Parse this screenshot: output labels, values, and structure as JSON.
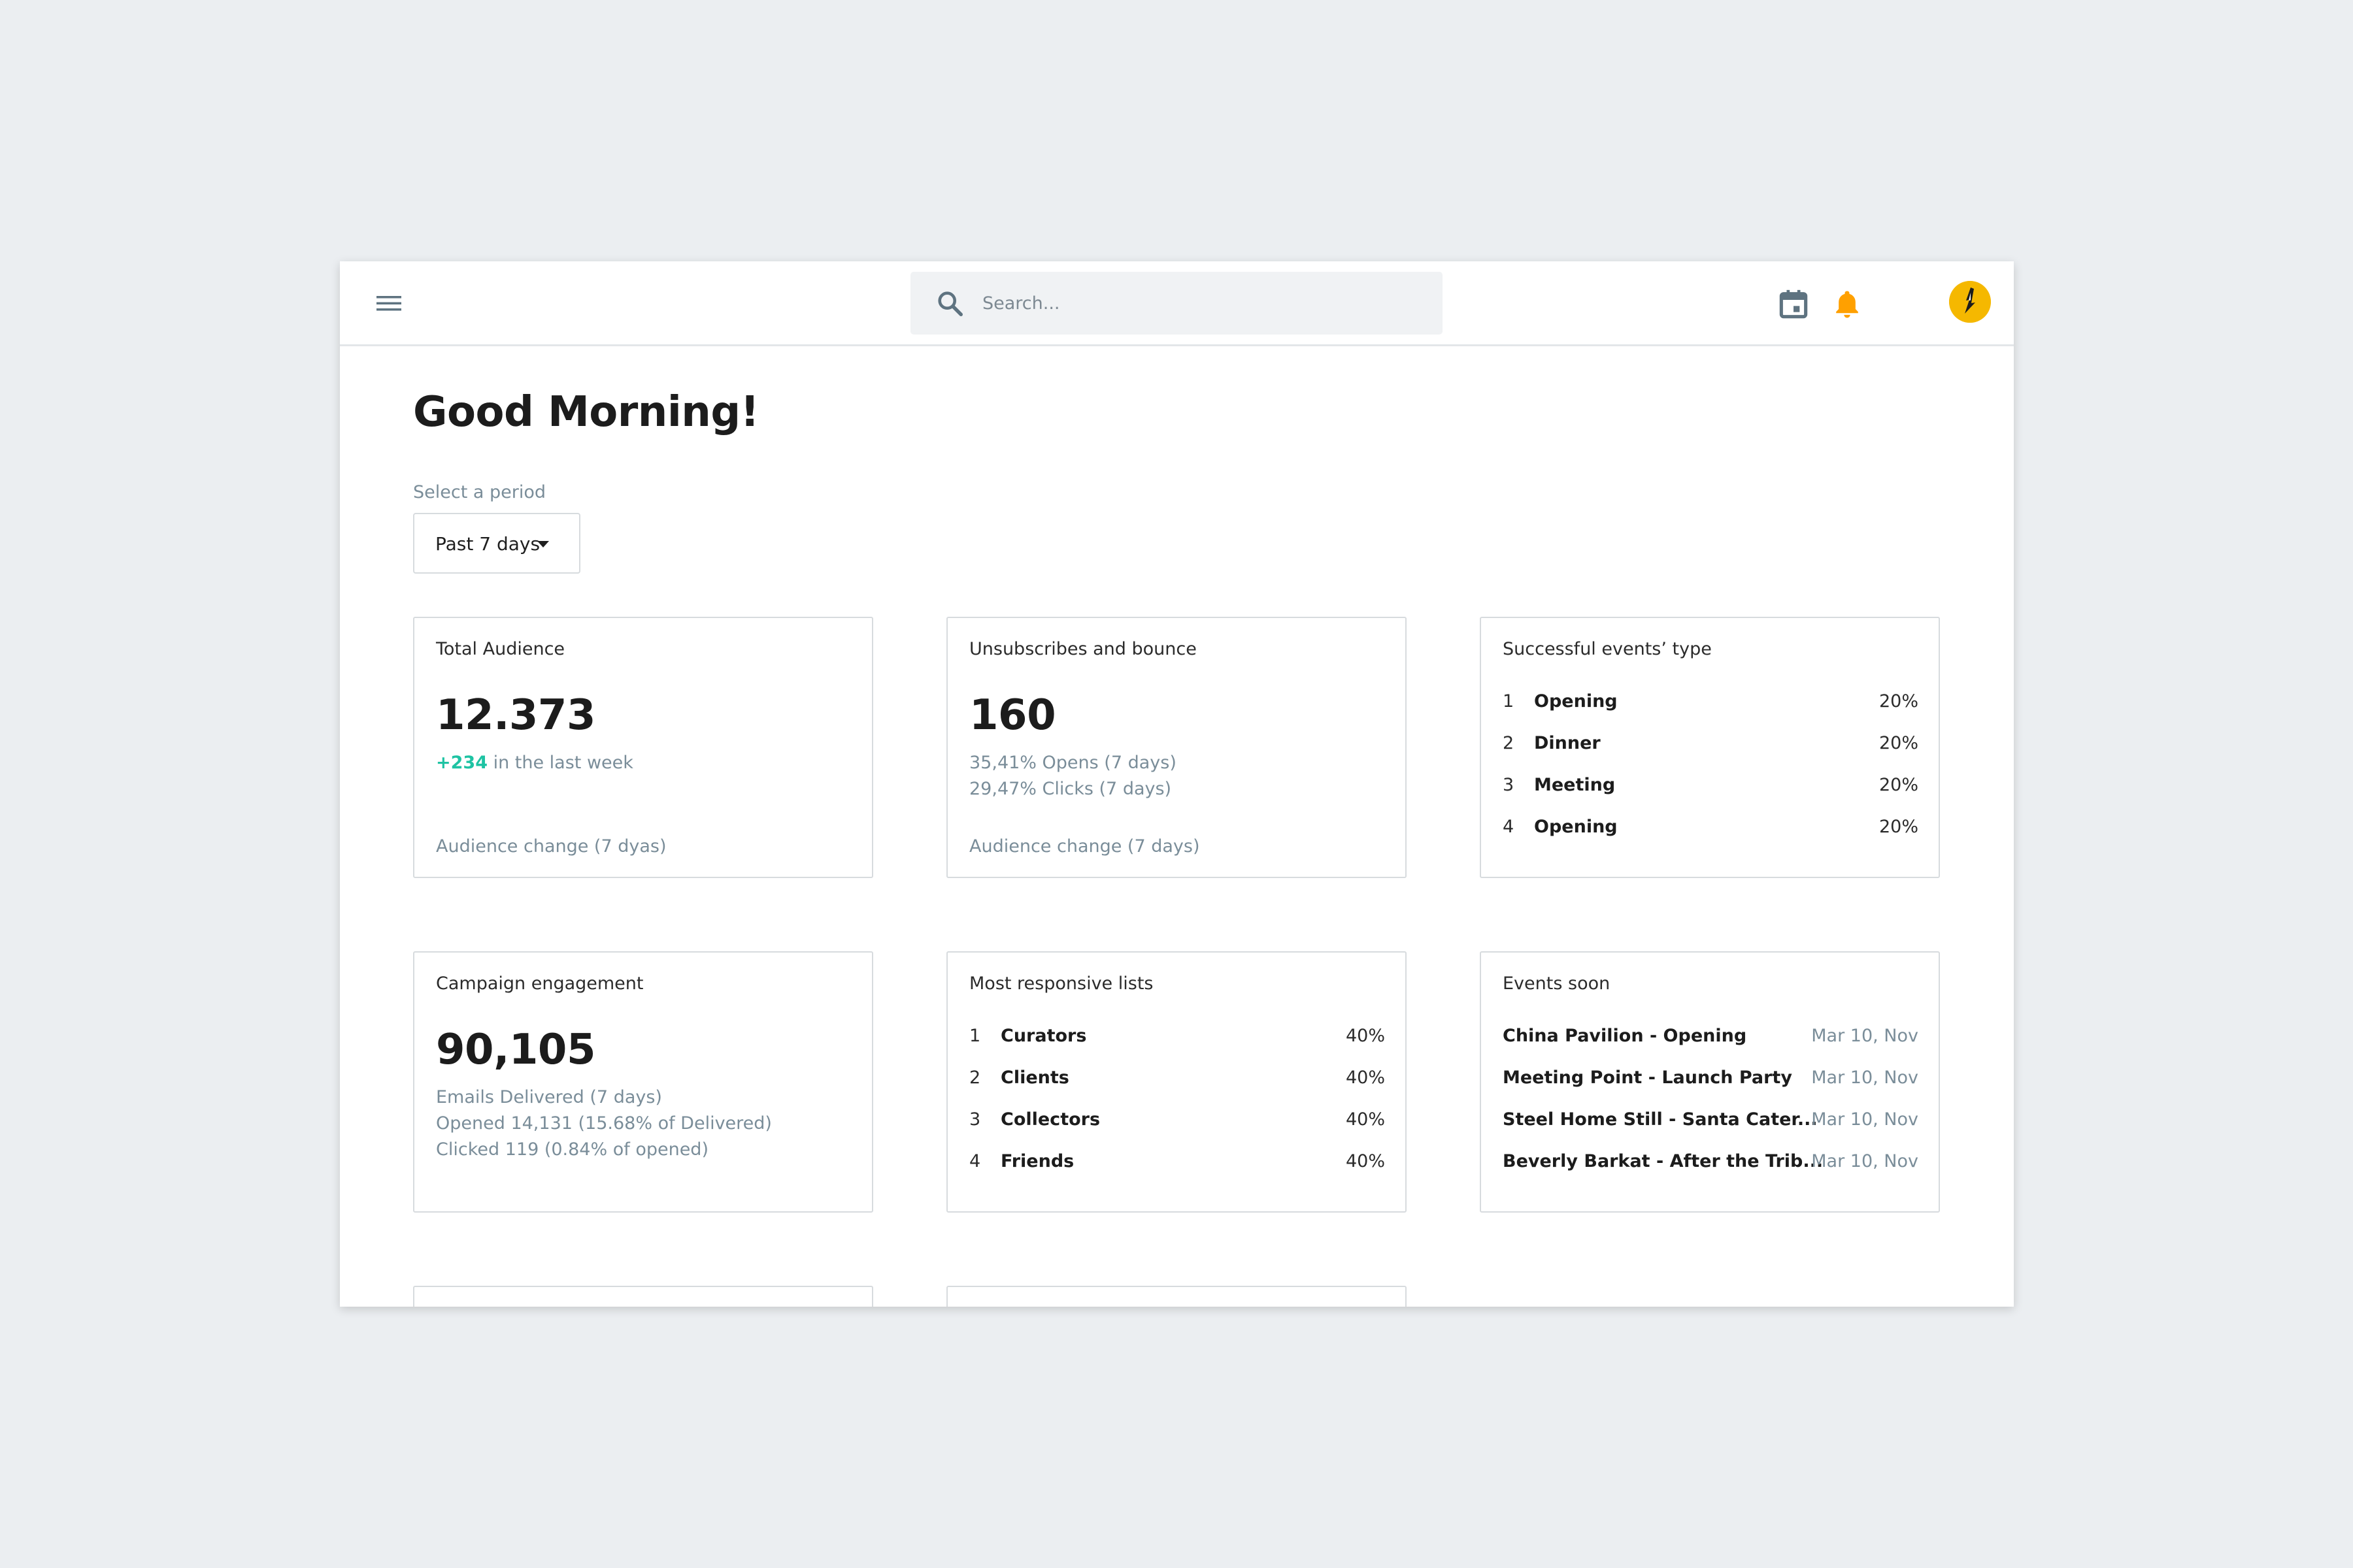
{
  "search": {
    "placeholder": "Search..."
  },
  "icons": {
    "menu": "menu-icon",
    "search": "search-icon",
    "calendar": "calendar-icon",
    "bell": "bell-icon",
    "avatar": "avatar-icon"
  },
  "colors": {
    "bell": "#ffa000",
    "avatar_bg": "#f5b800",
    "accent_green": "#1ec3a3",
    "muted_text": "#7a8d99"
  },
  "greeting": "Good Morning!",
  "period": {
    "label": "Select a period",
    "value": "Past 7 days"
  },
  "cards": {
    "total_audience": {
      "title": "Total Audience",
      "value": "12.373",
      "delta": "+234",
      "delta_text": " in the last week",
      "footer": "Audience change (7 dyas)"
    },
    "unsubscribes": {
      "title": "Unsubscribes and bounce",
      "value": "160",
      "line1": "35,41% Opens (7 days)",
      "line2": "29,47% Clicks (7 days)",
      "footer": "Audience change (7 days)"
    },
    "events_type": {
      "title": "Successful events’ type",
      "items": [
        {
          "index": "1",
          "name": "Opening",
          "pct": "20%"
        },
        {
          "index": "2",
          "name": "Dinner",
          "pct": "20%"
        },
        {
          "index": "3",
          "name": "Meeting",
          "pct": "20%"
        },
        {
          "index": "4",
          "name": "Opening",
          "pct": "20%"
        }
      ]
    },
    "campaign": {
      "title": "Campaign engagement",
      "value": "90,105",
      "line1": "Emails Delivered (7 days)",
      "line2": "Opened 14,131 (15.68% of Delivered)",
      "line3": "Clicked 119 (0.84% of opened)"
    },
    "responsive_lists": {
      "title": "Most responsive lists",
      "items": [
        {
          "index": "1",
          "name": "Curators",
          "pct": "40%"
        },
        {
          "index": "2",
          "name": "Clients",
          "pct": "40%"
        },
        {
          "index": "3",
          "name": "Collectors",
          "pct": "40%"
        },
        {
          "index": "4",
          "name": "Friends",
          "pct": "40%"
        }
      ]
    },
    "events_soon": {
      "title": "Events soon",
      "items": [
        {
          "name": "China Pavilion - Opening",
          "date": "Mar 10, Nov"
        },
        {
          "name": "Meeting Point - Launch Party",
          "date": "Mar 10, Nov"
        },
        {
          "name": "Steel Home Still -  Santa Cater...",
          "date": "Mar 10, Nov"
        },
        {
          "name": "Beverly Barkat - After the Trib...",
          "date": "Mar 10, Nov"
        }
      ]
    }
  }
}
